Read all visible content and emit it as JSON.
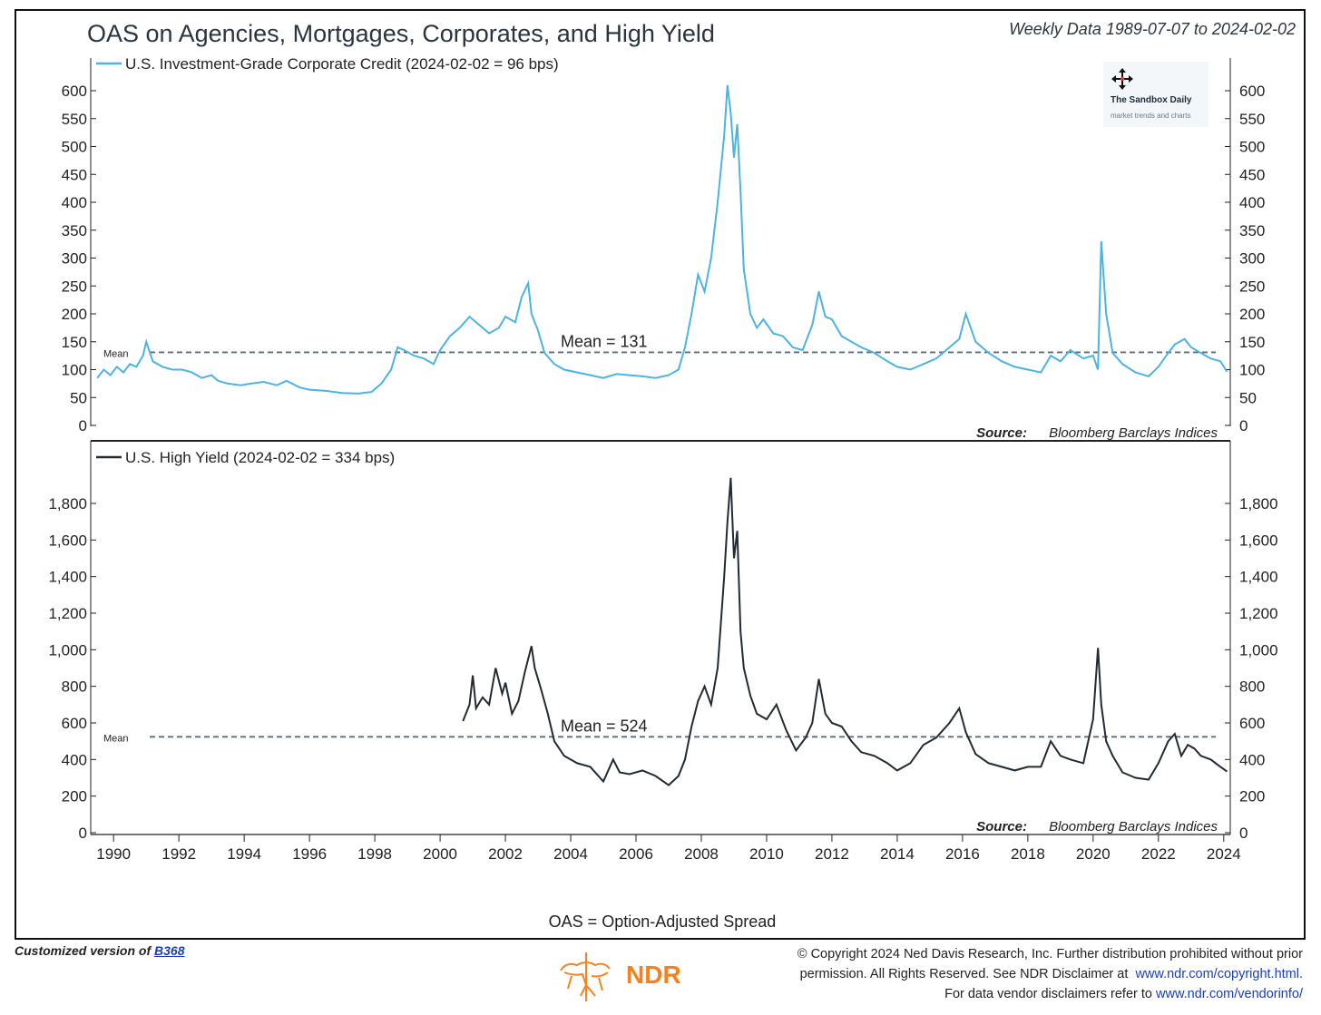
{
  "header": {
    "title": "OAS on Agencies, Mortgages, Corporates, and High Yield",
    "date_range": "Weekly Data 1989-07-07 to 2024-02-02"
  },
  "watermark": {
    "title": "The Sandbox Daily",
    "subtitle": "market trends and charts"
  },
  "chart_data": [
    {
      "type": "line",
      "title": "U.S. Investment-Grade Corporate Credit (2024-02-02 = 96 bps)",
      "color": "#4db3e0",
      "xlim": [
        1989.3,
        2024.2
      ],
      "ylim": [
        0,
        620
      ],
      "yticks": [
        0,
        50,
        100,
        150,
        200,
        250,
        300,
        350,
        400,
        450,
        500,
        550,
        600
      ],
      "ytick_labels": [
        "0",
        "50",
        "100",
        "150",
        "200",
        "250",
        "300",
        "350",
        "400",
        "450",
        "500",
        "550",
        "600"
      ],
      "mean_value": 131,
      "mean_label": "Mean = 131",
      "mean_tag": "Mean",
      "source_label": "Source:",
      "source_text": "Bloomberg Barclays Indices",
      "x": [
        1989.5,
        1989.7,
        1989.9,
        1990.1,
        1990.3,
        1990.5,
        1990.7,
        1990.9,
        1991.0,
        1991.2,
        1991.5,
        1991.8,
        1992.1,
        1992.4,
        1992.7,
        1993.0,
        1993.2,
        1993.5,
        1993.9,
        1994.2,
        1994.6,
        1995.0,
        1995.3,
        1995.7,
        1996.0,
        1996.5,
        1997.0,
        1997.5,
        1997.9,
        1998.2,
        1998.5,
        1998.7,
        1998.9,
        1999.2,
        1999.5,
        1999.8,
        2000.0,
        2000.3,
        2000.6,
        2000.9,
        2001.2,
        2001.5,
        2001.8,
        2002.0,
        2002.3,
        2002.5,
        2002.7,
        2002.8,
        2003.0,
        2003.2,
        2003.5,
        2003.8,
        2004.2,
        2004.6,
        2005.0,
        2005.4,
        2005.8,
        2006.2,
        2006.6,
        2007.0,
        2007.3,
        2007.5,
        2007.7,
        2007.9,
        2008.1,
        2008.3,
        2008.5,
        2008.7,
        2008.8,
        2008.9,
        2009.0,
        2009.1,
        2009.2,
        2009.3,
        2009.5,
        2009.7,
        2009.9,
        2010.2,
        2010.5,
        2010.8,
        2011.1,
        2011.4,
        2011.6,
        2011.8,
        2012.0,
        2012.3,
        2012.6,
        2012.9,
        2013.3,
        2013.7,
        2014.0,
        2014.4,
        2014.8,
        2015.2,
        2015.6,
        2015.9,
        2016.1,
        2016.4,
        2016.8,
        2017.2,
        2017.6,
        2018.0,
        2018.4,
        2018.7,
        2019.0,
        2019.3,
        2019.7,
        2020.0,
        2020.15,
        2020.25,
        2020.4,
        2020.6,
        2020.9,
        2021.3,
        2021.7,
        2022.0,
        2022.3,
        2022.5,
        2022.8,
        2023.0,
        2023.3,
        2023.6,
        2023.9,
        2024.1
      ],
      "values": [
        85,
        100,
        90,
        105,
        95,
        110,
        105,
        125,
        150,
        115,
        105,
        100,
        100,
        95,
        85,
        90,
        80,
        75,
        72,
        75,
        78,
        72,
        80,
        68,
        64,
        62,
        58,
        57,
        60,
        75,
        100,
        140,
        135,
        125,
        120,
        110,
        135,
        160,
        175,
        195,
        180,
        165,
        175,
        195,
        185,
        230,
        255,
        200,
        170,
        130,
        110,
        100,
        95,
        90,
        85,
        92,
        90,
        88,
        85,
        90,
        100,
        140,
        200,
        270,
        240,
        300,
        400,
        520,
        610,
        560,
        480,
        540,
        420,
        280,
        200,
        175,
        190,
        165,
        160,
        140,
        135,
        180,
        240,
        195,
        190,
        160,
        150,
        140,
        130,
        115,
        105,
        100,
        110,
        120,
        140,
        155,
        200,
        150,
        130,
        115,
        105,
        100,
        95,
        125,
        115,
        135,
        120,
        125,
        100,
        330,
        200,
        130,
        110,
        95,
        88,
        105,
        130,
        145,
        155,
        140,
        130,
        120,
        115,
        96
      ]
    },
    {
      "type": "line",
      "title": "U.S. High Yield (2024-02-02 = 334 bps)",
      "color": "#222b33",
      "xlim": [
        1989.3,
        2024.2
      ],
      "ylim": [
        0,
        1960
      ],
      "yticks": [
        0,
        200,
        400,
        600,
        800,
        1000,
        1200,
        1400,
        1600,
        1800
      ],
      "ytick_labels": [
        "0",
        "200",
        "400",
        "600",
        "800",
        "1,000",
        "1,200",
        "1,400",
        "1,600",
        "1,800"
      ],
      "mean_value": 524,
      "mean_label": "Mean = 524",
      "mean_tag": "Mean",
      "source_label": "Source:",
      "source_text": "Bloomberg Barclays Indices",
      "x": [
        2000.7,
        2000.9,
        2001.0,
        2001.1,
        2001.3,
        2001.5,
        2001.7,
        2001.9,
        2002.0,
        2002.2,
        2002.4,
        2002.6,
        2002.8,
        2002.9,
        2003.1,
        2003.3,
        2003.5,
        2003.8,
        2004.2,
        2004.6,
        2005.0,
        2005.3,
        2005.5,
        2005.8,
        2006.2,
        2006.6,
        2007.0,
        2007.3,
        2007.5,
        2007.7,
        2007.9,
        2008.1,
        2008.3,
        2008.5,
        2008.7,
        2008.8,
        2008.9,
        2009.0,
        2009.1,
        2009.2,
        2009.3,
        2009.5,
        2009.7,
        2010.0,
        2010.3,
        2010.6,
        2010.9,
        2011.2,
        2011.4,
        2011.6,
        2011.8,
        2012.0,
        2012.3,
        2012.6,
        2012.9,
        2013.3,
        2013.7,
        2014.0,
        2014.4,
        2014.8,
        2015.2,
        2015.6,
        2015.9,
        2016.1,
        2016.4,
        2016.8,
        2017.2,
        2017.6,
        2018.0,
        2018.4,
        2018.7,
        2019.0,
        2019.3,
        2019.7,
        2020.0,
        2020.15,
        2020.25,
        2020.4,
        2020.6,
        2020.9,
        2021.3,
        2021.7,
        2022.0,
        2022.3,
        2022.5,
        2022.7,
        2022.9,
        2023.1,
        2023.3,
        2023.6,
        2023.9,
        2024.1
      ],
      "values": [
        610,
        700,
        860,
        680,
        740,
        700,
        900,
        760,
        820,
        650,
        720,
        880,
        1020,
        900,
        780,
        650,
        500,
        420,
        380,
        360,
        280,
        400,
        330,
        320,
        340,
        310,
        260,
        310,
        400,
        580,
        720,
        800,
        700,
        900,
        1400,
        1700,
        1940,
        1500,
        1650,
        1100,
        900,
        750,
        650,
        620,
        700,
        560,
        450,
        520,
        600,
        840,
        650,
        600,
        580,
        500,
        440,
        420,
        380,
        340,
        380,
        480,
        520,
        600,
        680,
        550,
        430,
        380,
        360,
        340,
        360,
        360,
        500,
        420,
        400,
        380,
        620,
        1010,
        700,
        500,
        420,
        330,
        300,
        290,
        380,
        500,
        540,
        420,
        480,
        460,
        420,
        400,
        360,
        334
      ]
    }
  ],
  "x_axis": {
    "ticks": [
      1990,
      1992,
      1994,
      1996,
      1998,
      2000,
      2002,
      2004,
      2006,
      2008,
      2010,
      2012,
      2014,
      2016,
      2018,
      2020,
      2022,
      2024
    ],
    "labels": [
      "1990",
      "1992",
      "1994",
      "1996",
      "1998",
      "2000",
      "2002",
      "2004",
      "2006",
      "2008",
      "2010",
      "2012",
      "2014",
      "2016",
      "2018",
      "2020",
      "2022",
      "2024"
    ]
  },
  "note": "OAS = Option-Adjusted Spread",
  "footer": {
    "custom_prefix": "Customized version of",
    "custom_link": "B368",
    "logo_text": "NDR",
    "copyright_line1": "© Copyright 2024 Ned Davis Research, Inc. Further distribution prohibited without prior",
    "copyright_line2_a": "permission. All Rights Reserved. See NDR Disclaimer at",
    "copyright_line2_link": "www.ndr.com/copyright.html.",
    "copyright_line3_a": "For data vendor disclaimers refer to",
    "copyright_line3_link": "www.ndr.com/vendorinfo/"
  },
  "colors": {
    "mean_line": "#5c6e7e",
    "logo_orange": "#f58220",
    "link_blue": "#1a3fb5"
  }
}
